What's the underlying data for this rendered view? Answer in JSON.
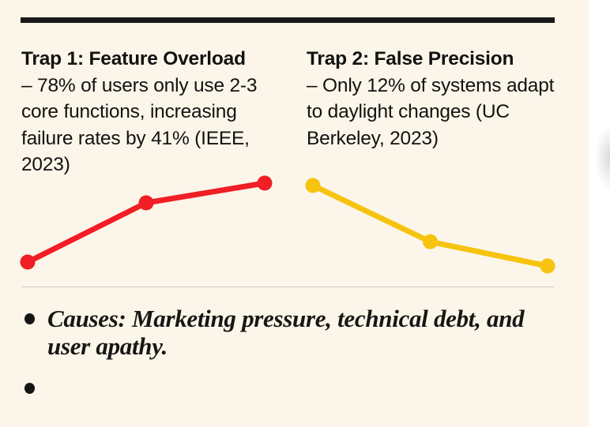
{
  "columns": [
    {
      "heading": "Trap 1: Feature Overload",
      "body": "– 78% of users only use 2-3 core functions, increasing failure rates by 41% (IEEE, 2023)"
    },
    {
      "heading": "Trap 2: False Precision",
      "body": "– Only 12% of systems adapt to daylight changes (UC Berkeley, 2023)"
    }
  ],
  "chart_data": {
    "type": "line",
    "title": "",
    "xlabel": "",
    "ylabel": "",
    "axes_visible": false,
    "grid": false,
    "legend": false,
    "charts": [
      {
        "name": "trap-1-trend",
        "type": "line",
        "color": "#f01e25",
        "x": [
          0,
          1,
          2
        ],
        "values": [
          10,
          70,
          90
        ],
        "ylim": [
          0,
          100
        ],
        "trend": "rising",
        "markers": "filled-circles"
      },
      {
        "name": "trap-2-trend",
        "type": "line",
        "color": "#f6c30e",
        "x": [
          0,
          1,
          2
        ],
        "values": [
          88,
          30,
          5
        ],
        "ylim": [
          0,
          100
        ],
        "trend": "falling",
        "markers": "filled-circles"
      }
    ]
  },
  "bullets": [
    {
      "text": "Causes: Marketing pressure, technical debt, and user apathy."
    },
    {
      "text": ""
    }
  ],
  "colors": {
    "panel_background": "#fbf6e9",
    "page_background": "#ffffff",
    "rule_black": "#191919",
    "divider_gray": "#cbcac5",
    "text": "#121212",
    "trap1_red": "#f01e25",
    "trap2_yellow": "#f6c30e"
  }
}
